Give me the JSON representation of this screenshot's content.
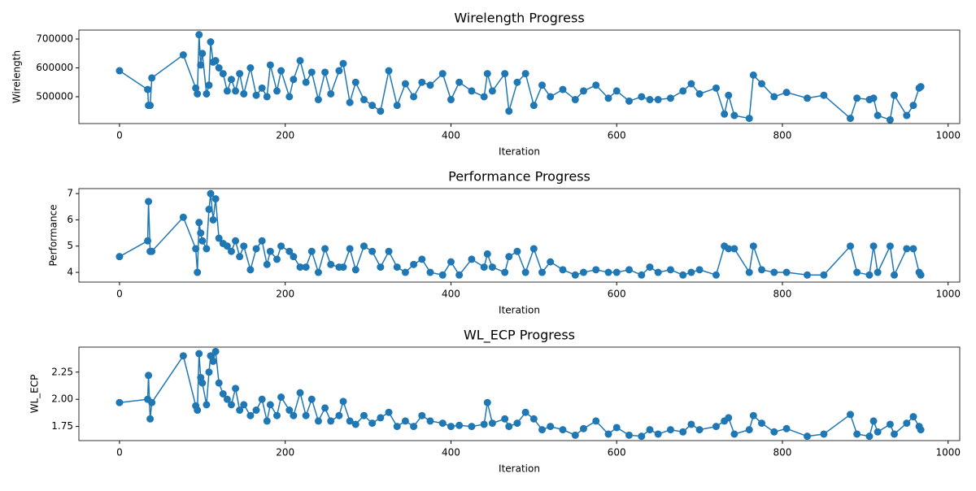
{
  "chart_data": [
    {
      "type": "line",
      "title": "Wirelength Progress",
      "x_label": "Iteration",
      "y_label": "Wirelength",
      "color": "#1f77b4",
      "x": [
        0,
        34,
        35,
        37,
        39,
        77,
        92,
        94,
        96,
        98,
        100,
        105,
        108,
        110,
        113,
        116,
        120,
        125,
        130,
        135,
        140,
        145,
        150,
        158,
        165,
        172,
        178,
        182,
        190,
        195,
        205,
        210,
        218,
        225,
        232,
        240,
        248,
        255,
        265,
        270,
        278,
        285,
        295,
        305,
        315,
        325,
        335,
        345,
        355,
        365,
        375,
        390,
        400,
        410,
        425,
        440,
        444,
        450,
        465,
        470,
        480,
        490,
        500,
        510,
        520,
        535,
        550,
        560,
        575,
        590,
        600,
        615,
        630,
        640,
        650,
        665,
        680,
        690,
        700,
        720,
        730,
        735,
        742,
        760,
        765,
        775,
        790,
        805,
        830,
        850,
        882,
        890,
        905,
        910,
        915,
        930,
        935,
        950,
        958,
        965,
        967
      ],
      "values": [
        590000,
        525000,
        470000,
        470000,
        565000,
        645000,
        530000,
        510000,
        715000,
        610000,
        650000,
        510000,
        540000,
        690000,
        620000,
        625000,
        600000,
        580000,
        520000,
        560000,
        520000,
        580000,
        510000,
        600000,
        505000,
        530000,
        500000,
        610000,
        520000,
        590000,
        500000,
        560000,
        625000,
        550000,
        585000,
        490000,
        585000,
        510000,
        590000,
        615000,
        480000,
        550000,
        490000,
        470000,
        450000,
        590000,
        470000,
        545000,
        500000,
        550000,
        540000,
        580000,
        490000,
        550000,
        520000,
        500000,
        580000,
        520000,
        580000,
        450000,
        550000,
        580000,
        470000,
        540000,
        500000,
        525000,
        490000,
        520000,
        540000,
        495000,
        520000,
        485000,
        500000,
        490000,
        490000,
        495000,
        520000,
        545000,
        510000,
        530000,
        440000,
        505000,
        435000,
        425000,
        575000,
        545000,
        500000,
        515000,
        495000,
        505000,
        425000,
        495000,
        490000,
        495000,
        435000,
        420000,
        505000,
        435000,
        470000,
        530000,
        535000
      ],
      "xlim": [
        -49,
        1014
      ],
      "xticks": [
        0,
        200,
        400,
        600,
        800,
        1000
      ],
      "ylim": [
        407000,
        731000
      ],
      "yticks": [
        500000,
        600000,
        700000
      ]
    },
    {
      "type": "line",
      "title": "Performance Progress",
      "x_label": "Iteration",
      "y_label": "Performance",
      "color": "#1f77b4",
      "x": [
        0,
        34,
        35,
        37,
        39,
        77,
        92,
        94,
        96,
        98,
        100,
        105,
        108,
        110,
        113,
        116,
        120,
        125,
        130,
        135,
        140,
        145,
        150,
        158,
        165,
        172,
        178,
        182,
        190,
        195,
        205,
        210,
        218,
        225,
        232,
        240,
        248,
        255,
        265,
        270,
        278,
        285,
        295,
        305,
        315,
        325,
        335,
        345,
        355,
        365,
        375,
        390,
        400,
        410,
        425,
        440,
        444,
        450,
        465,
        470,
        480,
        490,
        500,
        510,
        520,
        535,
        550,
        560,
        575,
        590,
        600,
        615,
        630,
        640,
        650,
        665,
        680,
        690,
        700,
        720,
        730,
        735,
        742,
        760,
        765,
        775,
        790,
        805,
        830,
        850,
        882,
        890,
        905,
        910,
        915,
        930,
        935,
        950,
        958,
        965,
        967
      ],
      "values": [
        4.6,
        5.2,
        6.7,
        4.8,
        4.8,
        6.1,
        4.9,
        4.0,
        5.9,
        5.5,
        5.2,
        4.9,
        6.4,
        7.0,
        6.0,
        6.8,
        5.3,
        5.1,
        5.0,
        4.8,
        5.2,
        4.6,
        5.0,
        4.1,
        4.9,
        5.2,
        4.3,
        4.8,
        4.5,
        5.0,
        4.8,
        4.6,
        4.2,
        4.2,
        4.8,
        4.0,
        4.9,
        4.3,
        4.2,
        4.2,
        4.9,
        4.1,
        5.0,
        4.8,
        4.2,
        4.8,
        4.2,
        4.0,
        4.3,
        4.5,
        4.0,
        3.9,
        4.4,
        3.9,
        4.5,
        4.2,
        4.7,
        4.2,
        4.0,
        4.6,
        4.8,
        4.0,
        4.9,
        4.0,
        4.4,
        4.1,
        3.9,
        4.0,
        4.1,
        4.0,
        4.0,
        4.1,
        3.9,
        4.2,
        4.0,
        4.1,
        3.9,
        4.0,
        4.1,
        3.9,
        5.0,
        4.9,
        4.9,
        4.0,
        5.0,
        4.1,
        4.0,
        4.0,
        3.9,
        3.9,
        5.0,
        4.0,
        3.9,
        5.0,
        4.0,
        5.0,
        3.9,
        4.9,
        4.9,
        4.0,
        3.9
      ],
      "xlim": [
        -49,
        1014
      ],
      "xticks": [
        0,
        200,
        400,
        600,
        800,
        1000
      ],
      "ylim": [
        3.63,
        7.19
      ],
      "yticks": [
        4,
        5,
        6,
        7
      ]
    },
    {
      "type": "line",
      "title": "WL_ECP Progress",
      "x_label": "Iteration",
      "y_label": "WL_ECP",
      "color": "#1f77b4",
      "x": [
        0,
        34,
        35,
        37,
        39,
        77,
        92,
        94,
        96,
        98,
        100,
        105,
        108,
        110,
        113,
        116,
        120,
        125,
        130,
        135,
        140,
        145,
        150,
        158,
        165,
        172,
        178,
        182,
        190,
        195,
        205,
        210,
        218,
        225,
        232,
        240,
        248,
        255,
        265,
        270,
        278,
        285,
        295,
        305,
        315,
        325,
        335,
        345,
        355,
        365,
        375,
        390,
        400,
        410,
        425,
        440,
        444,
        450,
        465,
        470,
        480,
        490,
        500,
        510,
        520,
        535,
        550,
        560,
        575,
        590,
        600,
        615,
        630,
        640,
        650,
        665,
        680,
        690,
        700,
        720,
        730,
        735,
        742,
        760,
        765,
        775,
        790,
        805,
        830,
        850,
        882,
        890,
        905,
        910,
        915,
        930,
        935,
        950,
        958,
        965,
        967
      ],
      "values": [
        1.97,
        2.0,
        2.22,
        1.82,
        1.97,
        2.4,
        1.94,
        1.9,
        2.42,
        2.2,
        2.15,
        1.95,
        2.25,
        2.4,
        2.35,
        2.44,
        2.15,
        2.05,
        2.0,
        1.95,
        2.1,
        1.9,
        1.95,
        1.85,
        1.9,
        2.0,
        1.8,
        1.95,
        1.85,
        2.02,
        1.9,
        1.85,
        2.06,
        1.85,
        2.0,
        1.8,
        1.92,
        1.8,
        1.85,
        1.98,
        1.8,
        1.77,
        1.85,
        1.78,
        1.83,
        1.88,
        1.75,
        1.8,
        1.75,
        1.85,
        1.8,
        1.78,
        1.75,
        1.76,
        1.75,
        1.77,
        1.97,
        1.78,
        1.82,
        1.75,
        1.78,
        1.88,
        1.82,
        1.72,
        1.75,
        1.72,
        1.67,
        1.73,
        1.8,
        1.68,
        1.74,
        1.67,
        1.66,
        1.72,
        1.68,
        1.72,
        1.7,
        1.77,
        1.72,
        1.75,
        1.8,
        1.83,
        1.68,
        1.72,
        1.85,
        1.78,
        1.7,
        1.73,
        1.66,
        1.68,
        1.86,
        1.68,
        1.66,
        1.8,
        1.7,
        1.77,
        1.68,
        1.78,
        1.84,
        1.75,
        1.72
      ],
      "xlim": [
        -49,
        1014
      ],
      "xticks": [
        0,
        200,
        400,
        600,
        800,
        1000
      ],
      "ylim": [
        1.62,
        2.48
      ],
      "yticks": [
        1.75,
        {
          "value": 2,
          "label": "2.00"
        },
        2.25
      ]
    }
  ]
}
